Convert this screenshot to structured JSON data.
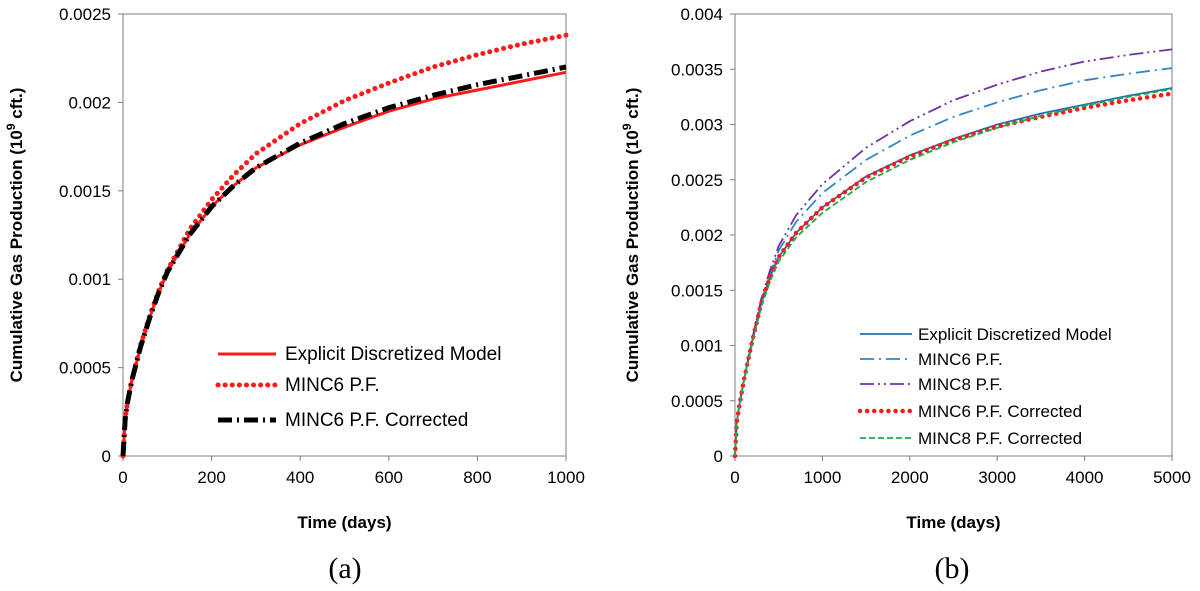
{
  "chart_data": [
    {
      "type": "line",
      "caption": "(a)",
      "xlabel": "Time (days)",
      "ylabel_parts": [
        "Cumulative Gas Production (10",
        "9",
        " cft.)"
      ],
      "xlim": [
        0,
        1000
      ],
      "ylim": [
        0,
        0.0025
      ],
      "xticks": [
        0,
        200,
        400,
        600,
        800,
        1000
      ],
      "yticks": [
        0,
        0.0005,
        0.001,
        0.0015,
        0.002,
        0.0025
      ],
      "ytick_labels": [
        "0",
        "0.0005",
        "0.001",
        "0.0015",
        "0.002",
        "0.0025"
      ],
      "xtick_labels": [
        "0",
        "200",
        "400",
        "600",
        "800",
        "1000"
      ],
      "grid": false,
      "legend_placement": "bottom-right",
      "series": [
        {
          "name": "Explicit Discretized Model",
          "color": "#ff1a1a",
          "style": "solid",
          "x": [
            0,
            5,
            10,
            20,
            40,
            60,
            80,
            100,
            150,
            200,
            250,
            300,
            400,
            500,
            600,
            700,
            800,
            900,
            1000
          ],
          "y": [
            0,
            0.00021,
            0.0003,
            0.00043,
            0.00062,
            0.00078,
            0.00092,
            0.00104,
            0.00125,
            0.00141,
            0.00153,
            0.00163,
            0.00176,
            0.00186,
            0.00195,
            0.00202,
            0.00207,
            0.00212,
            0.00217
          ]
        },
        {
          "name": "MINC6 P.F.",
          "color": "#ff1a1a",
          "style": "dotted",
          "x": [
            0,
            5,
            10,
            20,
            40,
            60,
            80,
            100,
            150,
            200,
            250,
            300,
            400,
            500,
            600,
            700,
            800,
            900,
            1000
          ],
          "y": [
            0,
            0.00021,
            0.0003,
            0.00043,
            0.00063,
            0.00079,
            0.00093,
            0.00105,
            0.00128,
            0.00145,
            0.00159,
            0.00171,
            0.00188,
            0.00201,
            0.00211,
            0.0022,
            0.00227,
            0.00233,
            0.00238
          ]
        },
        {
          "name": "MINC6 P.F. Corrected",
          "color": "#000000",
          "style": "dashdot",
          "x": [
            0,
            5,
            10,
            20,
            40,
            60,
            80,
            100,
            150,
            200,
            250,
            300,
            400,
            500,
            600,
            700,
            800,
            900,
            1000
          ],
          "y": [
            0,
            0.00021,
            0.0003,
            0.00043,
            0.00062,
            0.00078,
            0.00092,
            0.00104,
            0.00125,
            0.00141,
            0.00153,
            0.00163,
            0.00177,
            0.00188,
            0.00197,
            0.00204,
            0.0021,
            0.00215,
            0.0022
          ]
        }
      ]
    },
    {
      "type": "line",
      "caption": "(b)",
      "xlabel": "Time (days)",
      "ylabel_parts": [
        "Cumulative Gas Production (10",
        "9",
        " cft.)"
      ],
      "xlim": [
        0,
        5000
      ],
      "ylim": [
        0,
        0.004
      ],
      "xticks": [
        0,
        1000,
        2000,
        3000,
        4000,
        5000
      ],
      "yticks": [
        0,
        0.0005,
        0.001,
        0.0015,
        0.002,
        0.0025,
        0.003,
        0.0035,
        0.004
      ],
      "ytick_labels": [
        "0",
        "0.0005",
        "0.001",
        "0.0015",
        "0.002",
        "0.0025",
        "0.003",
        "0.0035",
        "0.004"
      ],
      "xtick_labels": [
        "0",
        "1000",
        "2000",
        "3000",
        "4000",
        "5000"
      ],
      "grid": false,
      "legend_placement": "bottom-right",
      "series": [
        {
          "name": "Explicit Discretized Model",
          "color": "#1f6fb4",
          "style": "solid",
          "x": [
            0,
            20,
            50,
            100,
            200,
            300,
            400,
            500,
            700,
            1000,
            1500,
            2000,
            2500,
            3000,
            3500,
            4000,
            4500,
            5000
          ],
          "y": [
            0,
            0.0003,
            0.00046,
            0.00068,
            0.00105,
            0.00138,
            0.00162,
            0.0018,
            0.00202,
            0.00225,
            0.00253,
            0.00272,
            0.00287,
            0.003,
            0.0031,
            0.00318,
            0.00326,
            0.00333
          ]
        },
        {
          "name": "MINC6 P.F.",
          "color": "#2f86c8",
          "style": "dashdot",
          "x": [
            0,
            20,
            50,
            100,
            200,
            300,
            400,
            500,
            700,
            1000,
            1500,
            2000,
            2500,
            3000,
            3500,
            4000,
            4500,
            5000
          ],
          "y": [
            0,
            0.0003,
            0.00046,
            0.00068,
            0.00106,
            0.0014,
            0.00165,
            0.00186,
            0.00212,
            0.00238,
            0.00268,
            0.0029,
            0.00307,
            0.0032,
            0.00331,
            0.0034,
            0.00346,
            0.00351
          ]
        },
        {
          "name": "MINC8 P.F.",
          "color": "#7030a0",
          "style": "dashdotdot",
          "x": [
            0,
            20,
            50,
            100,
            200,
            300,
            400,
            500,
            700,
            1000,
            1500,
            2000,
            2500,
            3000,
            3500,
            4000,
            4500,
            5000
          ],
          "y": [
            0,
            0.0003,
            0.00046,
            0.00068,
            0.00107,
            0.00142,
            0.00168,
            0.0019,
            0.00218,
            0.00246,
            0.00279,
            0.00303,
            0.00322,
            0.00336,
            0.00348,
            0.00357,
            0.00363,
            0.00368
          ]
        },
        {
          "name": "MINC6 P.F. Corrected",
          "color": "#ff1a1a",
          "style": "dotted",
          "x": [
            0,
            20,
            50,
            100,
            200,
            300,
            400,
            500,
            700,
            1000,
            1500,
            2000,
            2500,
            3000,
            3500,
            4000,
            4500,
            5000
          ],
          "y": [
            0,
            0.0003,
            0.00046,
            0.00068,
            0.00105,
            0.00138,
            0.00162,
            0.0018,
            0.00202,
            0.00225,
            0.00252,
            0.00271,
            0.00286,
            0.00298,
            0.00307,
            0.00315,
            0.00322,
            0.00328
          ]
        },
        {
          "name": "MINC8 P.F. Corrected",
          "color": "#22a84a",
          "style": "dashed",
          "x": [
            0,
            20,
            50,
            100,
            200,
            300,
            400,
            500,
            700,
            1000,
            1500,
            2000,
            2500,
            3000,
            3500,
            4000,
            4500,
            5000
          ],
          "y": [
            0,
            0.0003,
            0.00046,
            0.00067,
            0.00103,
            0.00135,
            0.00158,
            0.00176,
            0.00198,
            0.0022,
            0.00248,
            0.00268,
            0.00284,
            0.00297,
            0.00308,
            0.00317,
            0.00325,
            0.00332
          ]
        }
      ]
    }
  ]
}
